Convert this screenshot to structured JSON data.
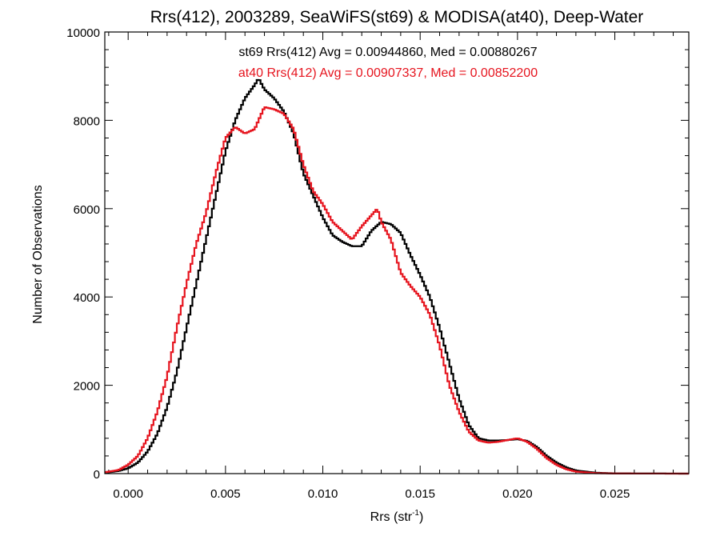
{
  "chart_data": {
    "type": "line",
    "step": true,
    "title": "Rrs(412), 2003289, SeaWiFS(st69) & MODISA(at40), Deep-Water",
    "xlabel_base": "Rrs (str",
    "xlabel_sup": "-1",
    "xlabel_close": ")",
    "ylabel": "Number of Observations",
    "xlim": [
      -0.0012,
      0.0288
    ],
    "ylim": [
      0,
      10000
    ],
    "x_ticks": [
      0.0,
      0.005,
      0.01,
      0.015,
      0.02,
      0.025
    ],
    "x_tick_labels": [
      "0.000",
      "0.005",
      "0.010",
      "0.015",
      "0.020",
      "0.025"
    ],
    "y_ticks": [
      0,
      2000,
      4000,
      6000,
      8000,
      10000
    ],
    "y_tick_labels": [
      "0",
      "2000",
      "4000",
      "6000",
      "8000",
      "10000"
    ],
    "legend_placement": "top-center",
    "grid": false,
    "series": [
      {
        "name": "st69",
        "label": "st69 Rrs(412) Avg = 0.00944860, Med = 0.00880267",
        "color": "#000000",
        "points": [
          [
            -0.0012,
            20
          ],
          [
            -0.0005,
            60
          ],
          [
            0.0,
            120
          ],
          [
            0.0005,
            250
          ],
          [
            0.001,
            500
          ],
          [
            0.0015,
            900
          ],
          [
            0.002,
            1500
          ],
          [
            0.0025,
            2300
          ],
          [
            0.003,
            3300
          ],
          [
            0.0035,
            4300
          ],
          [
            0.004,
            5300
          ],
          [
            0.0045,
            6300
          ],
          [
            0.005,
            7300
          ],
          [
            0.0055,
            8000
          ],
          [
            0.006,
            8500
          ],
          [
            0.0065,
            8800
          ],
          [
            0.0067,
            8950
          ],
          [
            0.007,
            8700
          ],
          [
            0.0075,
            8500
          ],
          [
            0.008,
            8200
          ],
          [
            0.0085,
            7700
          ],
          [
            0.009,
            6800
          ],
          [
            0.0095,
            6300
          ],
          [
            0.01,
            5800
          ],
          [
            0.0105,
            5400
          ],
          [
            0.011,
            5250
          ],
          [
            0.0115,
            5150
          ],
          [
            0.012,
            5150
          ],
          [
            0.0125,
            5500
          ],
          [
            0.013,
            5700
          ],
          [
            0.0135,
            5650
          ],
          [
            0.014,
            5450
          ],
          [
            0.0145,
            4950
          ],
          [
            0.015,
            4500
          ],
          [
            0.0155,
            4000
          ],
          [
            0.016,
            3300
          ],
          [
            0.0165,
            2500
          ],
          [
            0.017,
            1700
          ],
          [
            0.0175,
            1100
          ],
          [
            0.018,
            800
          ],
          [
            0.0185,
            750
          ],
          [
            0.019,
            750
          ],
          [
            0.0195,
            760
          ],
          [
            0.02,
            780
          ],
          [
            0.0205,
            740
          ],
          [
            0.021,
            600
          ],
          [
            0.0215,
            400
          ],
          [
            0.022,
            250
          ],
          [
            0.0225,
            140
          ],
          [
            0.023,
            70
          ],
          [
            0.024,
            20
          ],
          [
            0.025,
            5
          ],
          [
            0.0288,
            0
          ]
        ]
      },
      {
        "name": "at40",
        "label": "at40 Rrs(412) Avg = 0.00907337, Med = 0.00852200",
        "color": "#e6141e",
        "points": [
          [
            -0.0012,
            30
          ],
          [
            -0.0005,
            80
          ],
          [
            0.0,
            200
          ],
          [
            0.0005,
            400
          ],
          [
            0.001,
            800
          ],
          [
            0.0015,
            1400
          ],
          [
            0.002,
            2200
          ],
          [
            0.0025,
            3300
          ],
          [
            0.003,
            4300
          ],
          [
            0.0035,
            5200
          ],
          [
            0.004,
            5900
          ],
          [
            0.0045,
            6800
          ],
          [
            0.005,
            7600
          ],
          [
            0.0055,
            7850
          ],
          [
            0.006,
            7700
          ],
          [
            0.0065,
            7800
          ],
          [
            0.007,
            8300
          ],
          [
            0.0075,
            8250
          ],
          [
            0.008,
            8150
          ],
          [
            0.0085,
            7800
          ],
          [
            0.009,
            7000
          ],
          [
            0.0095,
            6400
          ],
          [
            0.01,
            6100
          ],
          [
            0.0105,
            5700
          ],
          [
            0.011,
            5500
          ],
          [
            0.0115,
            5300
          ],
          [
            0.012,
            5600
          ],
          [
            0.0125,
            5850
          ],
          [
            0.0128,
            6000
          ],
          [
            0.013,
            5700
          ],
          [
            0.0135,
            5300
          ],
          [
            0.014,
            4550
          ],
          [
            0.0145,
            4250
          ],
          [
            0.015,
            4000
          ],
          [
            0.0155,
            3600
          ],
          [
            0.016,
            2900
          ],
          [
            0.0165,
            2000
          ],
          [
            0.017,
            1400
          ],
          [
            0.0175,
            950
          ],
          [
            0.018,
            750
          ],
          [
            0.0185,
            700
          ],
          [
            0.019,
            720
          ],
          [
            0.0195,
            760
          ],
          [
            0.02,
            800
          ],
          [
            0.0205,
            720
          ],
          [
            0.021,
            560
          ],
          [
            0.0215,
            350
          ],
          [
            0.022,
            200
          ],
          [
            0.0225,
            100
          ],
          [
            0.023,
            45
          ],
          [
            0.024,
            10
          ],
          [
            0.025,
            2
          ],
          [
            0.0288,
            0
          ]
        ]
      }
    ]
  }
}
